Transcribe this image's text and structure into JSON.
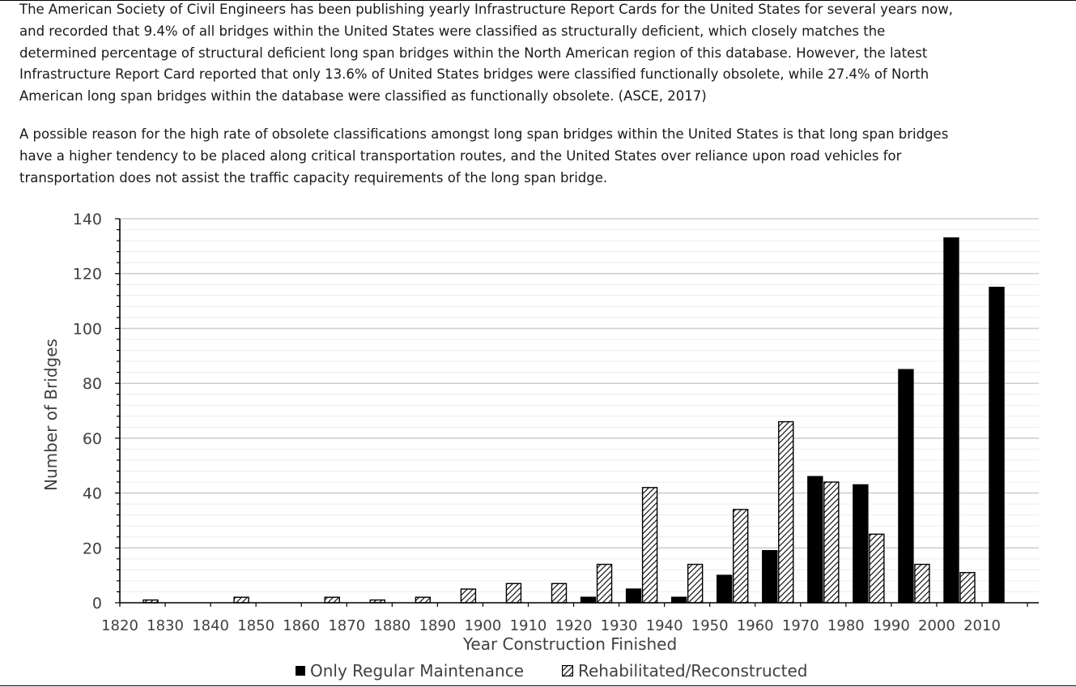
{
  "paragraphs": [
    "The American Society of Civil Engineers has been publishing yearly Infrastructure Report Cards for the United States for several years now, and recorded that 9.4% of all bridges within the United States were classified as structurally deficient, which closely matches the determined percentage of structural deficient long span bridges within the North American region of this database. However, the latest Infrastructure Report Card reported that only 13.6% of United States bridges were classified functionally obsolete, while 27.4% of North American long span bridges within the database were classified as functionally obsolete. (ASCE, 2017)",
    "A possible reason for the high rate of obsolete classifications amongst long span bridges within the United States is that long span bridges have a higher tendency to be placed along critical transportation routes, and the United States over reliance upon road vehicles for transportation does not assist the traffic capacity requirements of the long span bridge."
  ],
  "chart_data": {
    "type": "bar",
    "title": "",
    "xlabel": "Year Construction Finished",
    "ylabel": "Number of Bridges",
    "xticks": [
      "1820",
      "1830",
      "1840",
      "1850",
      "1860",
      "1870",
      "1880",
      "1890",
      "1900",
      "1910",
      "1920",
      "1930",
      "1940",
      "1950",
      "1960",
      "1970",
      "1980",
      "1990",
      "2000",
      "2010"
    ],
    "yticks": [
      "0",
      "20",
      "40",
      "60",
      "80",
      "100",
      "120",
      "140"
    ],
    "ylim": [
      0,
      140
    ],
    "categories": [
      "1820",
      "1830",
      "1840",
      "1850",
      "1860",
      "1870",
      "1880",
      "1890",
      "1900",
      "1910",
      "1920",
      "1930",
      "1940",
      "1950",
      "1960",
      "1970",
      "1980",
      "1990",
      "2000",
      "2010"
    ],
    "series": [
      {
        "name": "Only Regular Maintenance",
        "pattern": "solid",
        "color": "#000000",
        "values": [
          0,
          0,
          0,
          0,
          0,
          0,
          0,
          0,
          0,
          0,
          2,
          5,
          2,
          10,
          19,
          46,
          43,
          85,
          133,
          115
        ]
      },
      {
        "name": "Rehabilitated/Reconstructed",
        "pattern": "hatch",
        "color": "#000000",
        "values": [
          1,
          0,
          2,
          0,
          2,
          1,
          2,
          5,
          7,
          7,
          14,
          42,
          14,
          34,
          66,
          44,
          25,
          14,
          11,
          0
        ]
      }
    ],
    "grid": true,
    "legend_position": "bottom"
  }
}
